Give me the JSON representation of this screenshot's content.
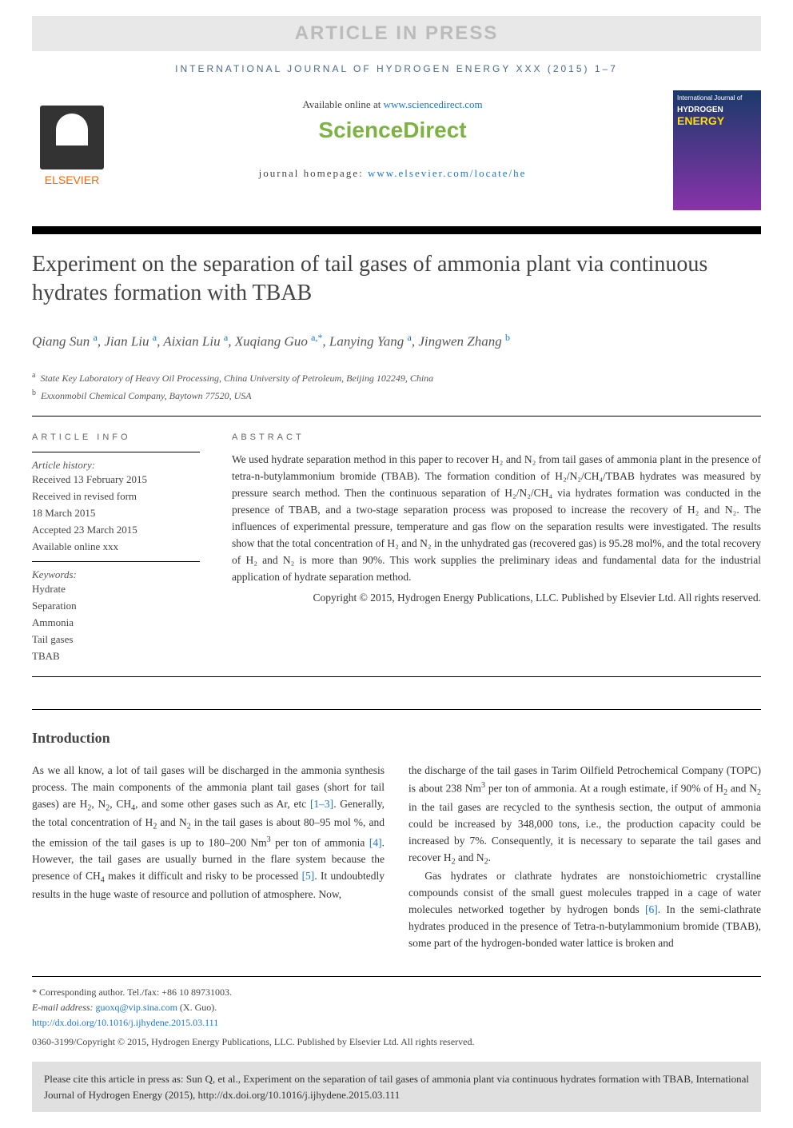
{
  "banner": {
    "article_in_press": "ARTICLE IN PRESS",
    "journal_header": "INTERNATIONAL JOURNAL OF HYDROGEN ENERGY XXX (2015) 1–7"
  },
  "header": {
    "elsevier_label": "ELSEVIER",
    "available_text": "Available online at ",
    "available_link": "www.sciencedirect.com",
    "sciencedirect": "ScienceDirect",
    "homepage_label": "journal homepage: ",
    "homepage_link": "www.elsevier.com/locate/he",
    "cover_small": "International Journal of",
    "cover_hydrogen": "HYDROGEN",
    "cover_energy": "ENERGY"
  },
  "article": {
    "title": "Experiment on the separation of tail gases of ammonia plant via continuous hydrates formation with TBAB",
    "authors_html": "Qiang Sun <sup><a>a</a></sup>, Jian Liu <sup><a>a</a></sup>, Aixian Liu <sup><a>a</a></sup>, Xuqiang Guo <sup><a>a,*</a></sup>, Lanying Yang <sup><a>a</a></sup>, Jingwen Zhang <sup><a>b</a></sup>",
    "affiliations": {
      "a": "State Key Laboratory of Heavy Oil Processing, China University of Petroleum, Beijing 102249, China",
      "b": "Exxonmobil Chemical Company, Baytown 77520, USA"
    }
  },
  "article_info": {
    "heading": "ARTICLE INFO",
    "history_label": "Article history:",
    "history": [
      "Received 13 February 2015",
      "Received in revised form",
      "18 March 2015",
      "Accepted 23 March 2015",
      "Available online xxx"
    ],
    "keywords_label": "Keywords:",
    "keywords": [
      "Hydrate",
      "Separation",
      "Ammonia",
      "Tail gases",
      "TBAB"
    ]
  },
  "abstract": {
    "heading": "ABSTRACT",
    "text": "We used hydrate separation method in this paper to recover H₂ and N₂ from tail gases of ammonia plant in the presence of tetra-n-butylammonium bromide (TBAB). The formation condition of H₂/N₂/CH₄/TBAB hydrates was measured by pressure search method. Then the continuous separation of H₂/N₂/CH₄ via hydrates formation was conducted in the presence of TBAB, and a two-stage separation process was proposed to increase the recovery of H₂ and N₂. The influences of experimental pressure, temperature and gas flow on the separation results were investigated. The results show that the total concentration of H₂ and N₂ in the unhydrated gas (recovered gas) is 95.28 mol%, and the total recovery of H₂ and N₂ is more than 90%. This work supplies the preliminary ideas and fundamental data for the industrial application of hydrate separation method.",
    "copyright": "Copyright © 2015, Hydrogen Energy Publications, LLC. Published by Elsevier Ltd. All rights reserved."
  },
  "intro": {
    "heading": "Introduction",
    "col1": "As we all know, a lot of tail gases will be discharged in the ammonia synthesis process. The main components of the ammonia plant tail gases (short for tail gases) are H₂, N₂, CH₄, and some other gases such as Ar, etc [1–3]. Generally, the total concentration of H₂ and N₂ in the tail gases is about 80–95 mol %, and the emission of the tail gases is up to 180–200 Nm³ per ton of ammonia [4]. However, the tail gases are usually burned in the flare system because the presence of CH₄ makes it difficult and risky to be processed [5]. It undoubtedly results in the huge waste of resource and pollution of atmosphere. Now,",
    "col2_p1": "the discharge of the tail gases in Tarim Oilfield Petrochemical Company (TOPC) is about 238 Nm³ per ton of ammonia. At a rough estimate, if 90% of H₂ and N₂ in the tail gases are recycled to the synthesis section, the output of ammonia could be increased by 348,000 tons, i.e., the production capacity could be increased by 7%. Consequently, it is necessary to separate the tail gases and recover H₂ and N₂.",
    "col2_p2": "Gas hydrates or clathrate hydrates are nonstoichiometric crystalline compounds consist of the small guest molecules trapped in a cage of water molecules networked together by hydrogen bonds [6]. In the semi-clathrate hydrates produced in the presence of Tetra-n-butylammonium bromide (TBAB), some part of the hydrogen-bonded water lattice is broken and"
  },
  "footnotes": {
    "corresponding": "* Corresponding author. Tel./fax: +86 10 89731003.",
    "email_label": "E-mail address: ",
    "email": "guoxq@vip.sina.com",
    "email_suffix": " (X. Guo).",
    "doi": "http://dx.doi.org/10.1016/j.ijhydene.2015.03.111",
    "issn": "0360-3199/Copyright © 2015, Hydrogen Energy Publications, LLC. Published by Elsevier Ltd. All rights reserved."
  },
  "citation": {
    "text": "Please cite this article in press as: Sun Q, et al., Experiment on the separation of tail gases of ammonia plant via continuous hydrates formation with TBAB, International Journal of Hydrogen Energy (2015), http://dx.doi.org/10.1016/j.ijhydene.2015.03.111"
  }
}
